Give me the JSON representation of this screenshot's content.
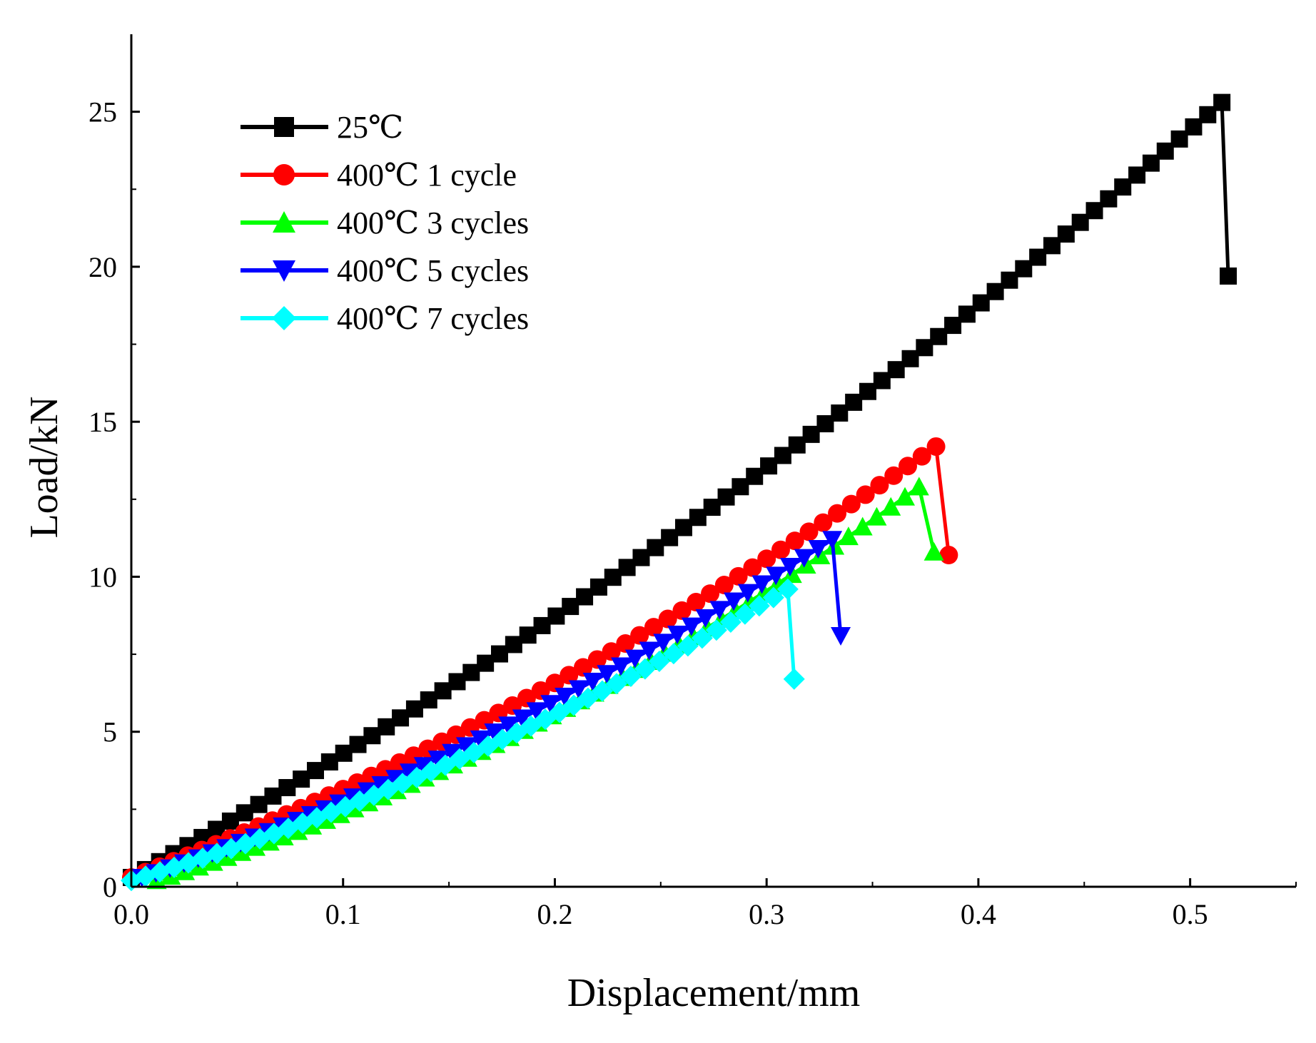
{
  "chart_data": {
    "type": "line",
    "title": "",
    "xlabel": "Displacement/mm",
    "ylabel": "Load/kN",
    "xlim": [
      0,
      0.55
    ],
    "ylim": [
      0,
      27.5
    ],
    "xticks": [
      0.0,
      0.1,
      0.2,
      0.3,
      0.4,
      0.5
    ],
    "xtick_labels": [
      "0.0",
      "0.1",
      "0.2",
      "0.3",
      "0.4",
      "0.5"
    ],
    "yticks": [
      0,
      5,
      10,
      15,
      20,
      25
    ],
    "ytick_labels": [
      "0",
      "5",
      "10",
      "15",
      "20",
      "25"
    ],
    "grid": false,
    "legend_position": "top-left",
    "series": [
      {
        "name": "25℃",
        "color": "#000000",
        "marker": "square",
        "curve": {
          "x_start": 0.0,
          "x_end": 0.515,
          "step": 0.00667,
          "y_start": 0.3,
          "y_end": 25.3,
          "curvature": 0.22
        },
        "failure_points": [
          {
            "x": 0.518,
            "y": 19.7
          }
        ]
      },
      {
        "name": "400℃ 1 cycle",
        "color": "#ff0000",
        "marker": "circle",
        "curve": {
          "x_start": 0.0,
          "x_end": 0.38,
          "step": 0.00667,
          "y_start": 0.3,
          "y_end": 14.2,
          "curvature": 0.3
        },
        "failure_points": [
          {
            "x": 0.386,
            "y": 10.7
          }
        ]
      },
      {
        "name": "400℃ 3 cycles",
        "color": "#00ff00",
        "marker": "triangle-up",
        "curve": {
          "x_start": 0.012,
          "x_end": 0.372,
          "step": 0.00667,
          "y_start": 0.2,
          "y_end": 12.9,
          "curvature": 0.4
        },
        "failure_points": [
          {
            "x": 0.379,
            "y": 10.8
          }
        ]
      },
      {
        "name": "400℃ 5 cycles",
        "color": "#0000ff",
        "marker": "triangle-down",
        "curve": {
          "x_start": 0.005,
          "x_end": 0.331,
          "step": 0.00667,
          "y_start": 0.3,
          "y_end": 11.2,
          "curvature": 0.32
        },
        "failure_points": [
          {
            "x": 0.335,
            "y": 8.1
          }
        ]
      },
      {
        "name": "400℃ 7 cycles",
        "color": "#00ffff",
        "marker": "diamond",
        "curve": {
          "x_start": 0.0,
          "x_end": 0.31,
          "step": 0.00667,
          "y_start": 0.2,
          "y_end": 9.6,
          "curvature": 0.33
        },
        "failure_points": [
          {
            "x": 0.313,
            "y": 6.7
          }
        ]
      }
    ]
  }
}
